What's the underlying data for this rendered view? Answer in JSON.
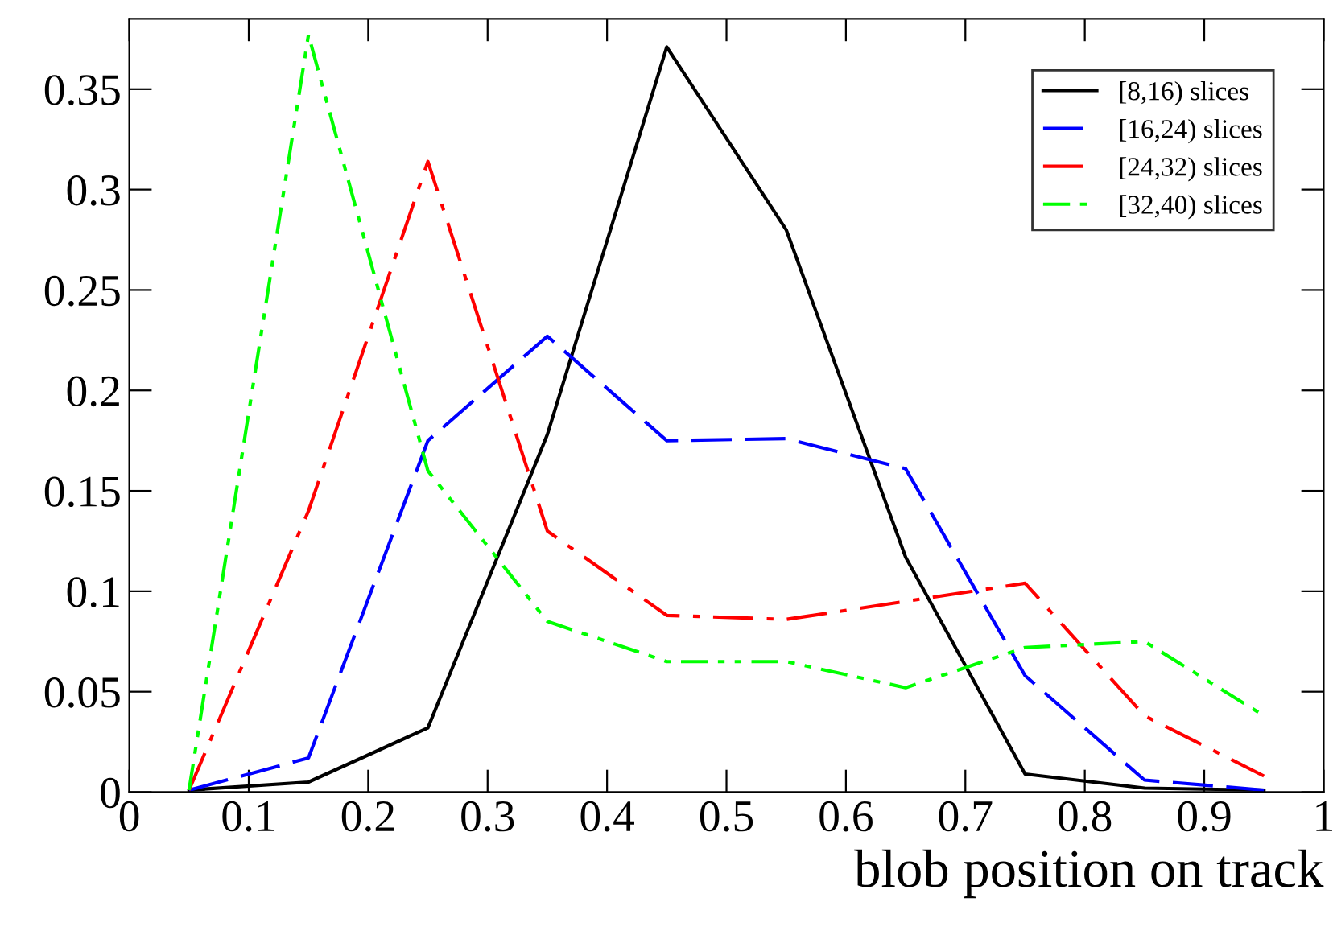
{
  "chart_data": {
    "type": "line",
    "xlabel": "blob position on track",
    "x": [
      0.05,
      0.15,
      0.25,
      0.35,
      0.45,
      0.55,
      0.65,
      0.75,
      0.85,
      0.95
    ],
    "series": [
      {
        "name": "[8,16) slices",
        "color": "#000000",
        "line_style": "solid",
        "values": [
          0.001,
          0.005,
          0.032,
          0.178,
          0.371,
          0.28,
          0.117,
          0.009,
          0.002,
          0.001
        ]
      },
      {
        "name": "[16,24) slices",
        "color": "#0000ff",
        "line_style": "dashed",
        "values": [
          0.001,
          0.017,
          0.175,
          0.227,
          0.175,
          0.176,
          0.161,
          0.058,
          0.006,
          0.001
        ]
      },
      {
        "name": "[24,32) slices",
        "color": "#ff0000",
        "line_style": "dashdot",
        "values": [
          0.001,
          0.14,
          0.314,
          0.13,
          0.088,
          0.086,
          0.095,
          0.104,
          0.038,
          0.008
        ]
      },
      {
        "name": "[32,40) slices",
        "color": "#00ff00",
        "line_style": "dashdotdot",
        "values": [
          0.001,
          0.377,
          0.16,
          0.085,
          0.065,
          0.065,
          0.052,
          0.072,
          0.075,
          0.038
        ]
      }
    ],
    "xlim": [
      0,
      1
    ],
    "ylim": [
      0,
      0.385
    ],
    "xticks": [
      0,
      0.1,
      0.2,
      0.3,
      0.4,
      0.5,
      0.6,
      0.7,
      0.8,
      0.9,
      1
    ],
    "yticks": [
      0,
      0.05,
      0.1,
      0.15,
      0.2,
      0.25,
      0.3,
      0.35
    ],
    "grid": false,
    "legend": "top right",
    "marker": "none"
  }
}
